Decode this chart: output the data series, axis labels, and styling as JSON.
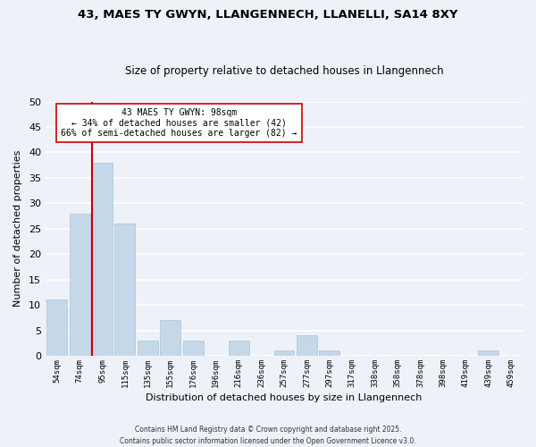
{
  "title": "43, MAES TY GWYN, LLANGENNECH, LLANELLI, SA14 8XY",
  "subtitle": "Size of property relative to detached houses in Llangennech",
  "xlabel": "Distribution of detached houses by size in Llangennech",
  "ylabel": "Number of detached properties",
  "bar_color": "#c5d8ea",
  "bar_edge_color": "#a8c4d8",
  "background_color": "#eef2f8",
  "grid_color": "#ffffff",
  "bin_labels": [
    "54sqm",
    "74sqm",
    "95sqm",
    "115sqm",
    "135sqm",
    "155sqm",
    "176sqm",
    "196sqm",
    "216sqm",
    "236sqm",
    "257sqm",
    "277sqm",
    "297sqm",
    "317sqm",
    "338sqm",
    "358sqm",
    "378sqm",
    "398sqm",
    "419sqm",
    "439sqm",
    "459sqm"
  ],
  "bar_heights": [
    11,
    28,
    38,
    26,
    3,
    7,
    3,
    0,
    3,
    0,
    1,
    4,
    1,
    0,
    0,
    0,
    0,
    0,
    0,
    1,
    0
  ],
  "ylim": [
    0,
    50
  ],
  "yticks": [
    0,
    5,
    10,
    15,
    20,
    25,
    30,
    35,
    40,
    45,
    50
  ],
  "vline_color": "#cc0000",
  "vline_bar_index": 2,
  "annotation_title": "43 MAES TY GWYN: 98sqm",
  "annotation_line1": "← 34% of detached houses are smaller (42)",
  "annotation_line2": "66% of semi-detached houses are larger (82) →",
  "annotation_box_color": "#ffffff",
  "annotation_box_edge": "#cc0000",
  "footer_line1": "Contains HM Land Registry data © Crown copyright and database right 2025.",
  "footer_line2": "Contains public sector information licensed under the Open Government Licence v3.0."
}
